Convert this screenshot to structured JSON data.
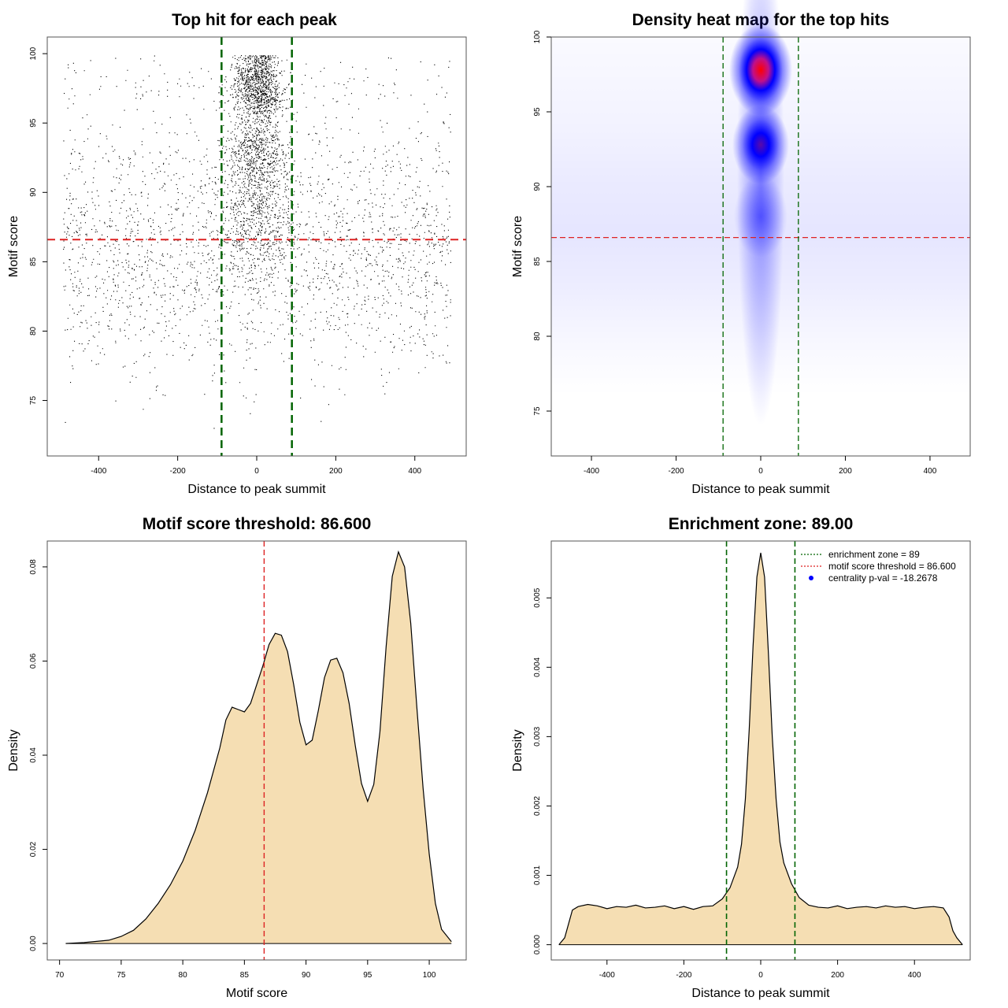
{
  "colors": {
    "threshold": "#dd2222",
    "zone": "#006400",
    "fill": "#f5deb3",
    "heat_low": "#ffffff",
    "heat_mid": "#0000ff",
    "heat_high": "#ff0000",
    "point": "#000000",
    "pval_marker": "#0000ff"
  },
  "chart_data": [
    {
      "id": "scatter",
      "type": "scatter",
      "title": "Top hit for each peak",
      "xlabel": "Distance to peak summit",
      "ylabel": "Motif score",
      "xlim": [
        -530,
        530
      ],
      "ylim": [
        71,
        101.2
      ],
      "xticks": [
        "-400",
        "-200",
        "0",
        "200",
        "400"
      ],
      "xtick_values": [
        -400,
        -200,
        0,
        200,
        400
      ],
      "yticks": [
        "75",
        "80",
        "85",
        "90",
        "95",
        "100"
      ],
      "ytick_values": [
        75,
        80,
        85,
        90,
        95,
        100
      ],
      "threshold": 86.6,
      "zone": [
        -89,
        89
      ],
      "x_range": [
        -490,
        490
      ],
      "score_range": [
        72,
        100
      ],
      "point_count": 16000,
      "point_count_estimated": true
    },
    {
      "id": "heatmap",
      "type": "heatmap",
      "title": "Density heat map for the top hits",
      "xlabel": "Distance to peak summit",
      "ylabel": "Motif score",
      "xlim": [
        -495,
        495
      ],
      "ylim": [
        72,
        100
      ],
      "xticks": [
        "-400",
        "-200",
        "0",
        "200",
        "400"
      ],
      "xtick_values": [
        -400,
        -200,
        0,
        200,
        400
      ],
      "yticks": [
        "75",
        "80",
        "85",
        "90",
        "95",
        "100"
      ],
      "ytick_values": [
        75,
        80,
        85,
        90,
        95,
        100
      ],
      "threshold": 86.6,
      "zone": [
        -89,
        89
      ],
      "hotspots": [
        {
          "x": 0,
          "y": 97.8,
          "peak_density": 1.0
        },
        {
          "x": 0,
          "y": 92.8,
          "peak_density": 0.62
        },
        {
          "x": 0,
          "y": 88.0,
          "peak_density": 0.3
        }
      ]
    },
    {
      "id": "score_density",
      "type": "area",
      "title": "Motif score threshold: 86.600",
      "xlabel": "Motif score",
      "ylabel": "Density",
      "xlim": [
        69,
        103
      ],
      "ylim": [
        -0.0035,
        0.0855
      ],
      "xticks": [
        "70",
        "75",
        "80",
        "85",
        "90",
        "95",
        "100"
      ],
      "xtick_values": [
        70,
        75,
        80,
        85,
        90,
        95,
        100
      ],
      "yticks": [
        "0.00",
        "0.02",
        "0.04",
        "0.06",
        "0.08"
      ],
      "ytick_values": [
        0,
        0.02,
        0.04,
        0.06,
        0.08
      ],
      "threshold": 86.6,
      "x": [
        70.5,
        72,
        74,
        75,
        76,
        77,
        78,
        79,
        80,
        81,
        82,
        83,
        83.5,
        84,
        84.5,
        85,
        85.5,
        86,
        86.5,
        87,
        87.5,
        88,
        88.5,
        89,
        89.5,
        90,
        90.5,
        91,
        91.5,
        92,
        92.5,
        93,
        93.5,
        94,
        94.5,
        95,
        95.5,
        96,
        96.5,
        97,
        97.5,
        98,
        98.5,
        99,
        99.5,
        100,
        100.5,
        101,
        101.8
      ],
      "y": [
        0.0,
        0.0002,
        0.0007,
        0.0015,
        0.0028,
        0.0052,
        0.0085,
        0.0125,
        0.0175,
        0.024,
        0.032,
        0.0415,
        0.0475,
        0.0502,
        0.0497,
        0.0492,
        0.051,
        0.055,
        0.059,
        0.0635,
        0.0659,
        0.0655,
        0.062,
        0.055,
        0.047,
        0.0422,
        0.0432,
        0.0495,
        0.0565,
        0.0602,
        0.0606,
        0.0575,
        0.051,
        0.042,
        0.034,
        0.0302,
        0.0338,
        0.045,
        0.063,
        0.078,
        0.0832,
        0.08,
        0.068,
        0.05,
        0.033,
        0.019,
        0.0085,
        0.003,
        0.0004
      ]
    },
    {
      "id": "distance_density",
      "type": "area",
      "title": "Enrichment zone: 89.00",
      "xlabel": "Distance to peak summit",
      "ylabel": "Density",
      "xlim": [
        -545,
        545
      ],
      "ylim": [
        -0.00022,
        0.00582
      ],
      "xticks": [
        "-400",
        "-200",
        "0",
        "200",
        "400"
      ],
      "xtick_values": [
        -400,
        -200,
        0,
        200,
        400
      ],
      "yticks": [
        "0.000",
        "0.001",
        "0.002",
        "0.003",
        "0.004",
        "0.005"
      ],
      "ytick_values": [
        0,
        0.001,
        0.002,
        0.003,
        0.004,
        0.005
      ],
      "zone": [
        -89,
        89
      ],
      "x": [
        -525,
        -510,
        -500,
        -490,
        -475,
        -450,
        -425,
        -400,
        -375,
        -350,
        -325,
        -300,
        -275,
        -250,
        -225,
        -200,
        -175,
        -150,
        -125,
        -100,
        -80,
        -60,
        -50,
        -40,
        -30,
        -20,
        -10,
        0,
        10,
        20,
        30,
        40,
        50,
        60,
        80,
        100,
        125,
        150,
        175,
        200,
        225,
        250,
        275,
        300,
        325,
        350,
        375,
        400,
        425,
        450,
        475,
        490,
        500,
        510,
        525
      ],
      "y": [
        0.0,
        0.0001,
        0.0003,
        0.0005,
        0.00055,
        0.00058,
        0.00056,
        0.00052,
        0.00055,
        0.00054,
        0.00057,
        0.00053,
        0.00054,
        0.00056,
        0.00052,
        0.00055,
        0.00051,
        0.00055,
        0.00056,
        0.00066,
        0.00082,
        0.00112,
        0.00145,
        0.0021,
        0.0031,
        0.0043,
        0.0053,
        0.00565,
        0.0053,
        0.0042,
        0.003,
        0.0021,
        0.00148,
        0.00118,
        0.00088,
        0.00068,
        0.00057,
        0.00054,
        0.00053,
        0.00056,
        0.00052,
        0.00054,
        0.00055,
        0.00053,
        0.00056,
        0.00054,
        0.00055,
        0.00052,
        0.00054,
        0.00055,
        0.00053,
        0.0004,
        0.0002,
        0.0001,
        0.0
      ],
      "legend": [
        {
          "label": "enrichment zone = 89",
          "kind": "line",
          "color": "#006400"
        },
        {
          "label": "motif score threshold = 86.600",
          "kind": "line",
          "color": "#dd2222"
        },
        {
          "label": "centrality p-val = -18.2678",
          "kind": "point",
          "color": "#0000ff"
        }
      ]
    }
  ]
}
